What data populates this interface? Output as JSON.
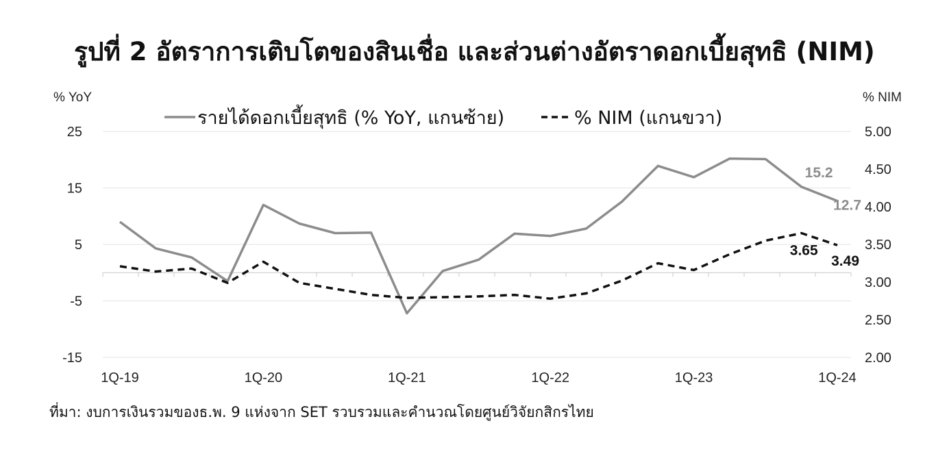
{
  "title": "รูปที่ 2 อัตราการเติบโตของสินเชื่อ และส่วนต่างอัตราดอกเบี้ยสุทธิ (NIM)",
  "source": "ที่มา: งบการเงินรวมของธ.พ. 9 แห่งจาก SET รวบรวมและคำนวณโดยศูนย์วิจัยกสิกรไทย",
  "chart_data": {
    "type": "line",
    "left_axis": {
      "label": "% YoY",
      "ticks": [
        25,
        15,
        5,
        -5,
        -15
      ],
      "range": [
        -15,
        25
      ]
    },
    "right_axis": {
      "label": "% NIM",
      "ticks": [
        "5.00",
        "4.50",
        "4.00",
        "3.50",
        "3.00",
        "2.50",
        "2.00"
      ],
      "range": [
        2.0,
        5.0
      ]
    },
    "x": [
      "1Q-19",
      "2Q-19",
      "3Q-19",
      "4Q-19",
      "1Q-20",
      "2Q-20",
      "3Q-20",
      "4Q-20",
      "1Q-21",
      "2Q-21",
      "3Q-21",
      "4Q-21",
      "1Q-22",
      "2Q-22",
      "3Q-22",
      "4Q-22",
      "1Q-23",
      "2Q-23",
      "3Q-23",
      "4Q-23",
      "1Q-24"
    ],
    "x_tick_labels": [
      "1Q-19",
      "1Q-20",
      "1Q-21",
      "1Q-22",
      "1Q-23",
      "1Q-24"
    ],
    "series": [
      {
        "name": "รายได้ดอกเบี้ยสุทธิ (% YoY, แกนซ้าย)",
        "axis": "left",
        "color": "#8c8c8c",
        "style": "solid",
        "values": [
          9.0,
          4.3,
          2.7,
          -1.5,
          12.0,
          8.7,
          7.0,
          7.1,
          -7.2,
          0.3,
          2.3,
          6.9,
          6.5,
          7.8,
          12.6,
          18.9,
          16.9,
          20.2,
          20.1,
          15.2,
          12.7
        ],
        "end_labels": [
          {
            "index": 19,
            "text": "15.2"
          },
          {
            "index": 20,
            "text": "12.7"
          }
        ]
      },
      {
        "name": "% NIM (แกนขวา)",
        "axis": "right",
        "color": "#111111",
        "style": "dashed",
        "values": [
          3.21,
          3.14,
          3.18,
          2.99,
          3.27,
          2.99,
          2.91,
          2.83,
          2.79,
          2.8,
          2.81,
          2.83,
          2.78,
          2.85,
          3.02,
          3.25,
          3.16,
          3.37,
          3.55,
          3.65,
          3.49
        ],
        "end_labels": [
          {
            "index": 19,
            "text": "3.65"
          },
          {
            "index": 20,
            "text": "3.49"
          }
        ]
      }
    ],
    "grid": "horizontal",
    "legend_position": "top"
  }
}
